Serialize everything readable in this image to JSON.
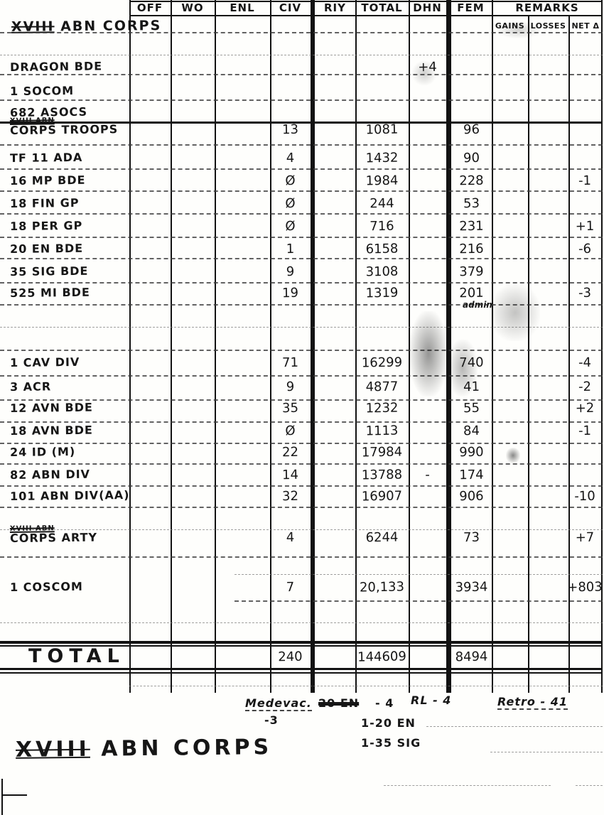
{
  "colors": {
    "ink": "#161616",
    "paper": "#fefefc",
    "smudge": "#555555"
  },
  "header": {
    "unit_title_prefix": "XVIII",
    "unit_title_rest": " ABN CORPS",
    "columns": [
      "OFF",
      "WO",
      "ENL",
      "CIV",
      "RIY",
      "TOTAL",
      "DHN",
      "FEM",
      "REMARKS"
    ],
    "remarks_subcolumns": [
      "GAINS",
      "LOSSES",
      "NET Δ"
    ]
  },
  "rows": [
    {
      "name": "DRAGON BDE",
      "dhn": "+4"
    },
    {
      "name": "1 SOCOM"
    },
    {
      "name": "682 ASOCS"
    },
    {
      "name_top": "XVIII ABN",
      "name": "CORPS TROOPS",
      "civ": "13",
      "total": "1081",
      "fem": "96"
    },
    {
      "name": "TF 11 ADA",
      "civ": "4",
      "total": "1432",
      "fem": "90"
    },
    {
      "name": "16 MP BDE",
      "civ": "Ø",
      "total": "1984",
      "fem": "228",
      "net": "-1"
    },
    {
      "name": "18 FIN GP",
      "civ": "Ø",
      "total": "244",
      "fem": "53"
    },
    {
      "name": "18 PER GP",
      "civ": "Ø",
      "total": "716",
      "fem": "231",
      "net": "+1"
    },
    {
      "name": "20 EN BDE",
      "civ": "1",
      "total": "6158",
      "fem": "216",
      "net": "-6"
    },
    {
      "name": "35 SIG BDE",
      "civ": "9",
      "total": "3108",
      "fem": "379"
    },
    {
      "name": "525 MI BDE",
      "civ": "19",
      "total": "1319",
      "fem": "201",
      "fem_note": "admin",
      "net": "-3"
    },
    {
      "name": "1 CAV DIV",
      "civ": "71",
      "total": "16299",
      "fem": "740",
      "net": "-4"
    },
    {
      "name": "3 ACR",
      "civ": "9",
      "total": "4877",
      "fem": "41",
      "net": "-2"
    },
    {
      "name": "12 AVN BDE",
      "civ": "35",
      "total": "1232",
      "fem": "55",
      "net": "+2"
    },
    {
      "name": "18 AVN BDE",
      "civ": "Ø",
      "total": "1113",
      "fem": "84",
      "net": "-1"
    },
    {
      "name": "24 ID (M)",
      "civ": "22",
      "total": "17984",
      "fem": "990"
    },
    {
      "name": "82 ABN DIV",
      "civ": "14",
      "total": "13788",
      "dhn": "-",
      "fem": "174"
    },
    {
      "name": "101 ABN DIV(AA)",
      "civ": "32",
      "total": "16907",
      "fem": "906",
      "net": "-10"
    },
    {
      "name_top": "XVIII ABN",
      "name": "CORPS ARTY",
      "civ": "4",
      "total": "6244",
      "fem": "73",
      "net": "+7"
    },
    {
      "name": "1 COSCOM",
      "civ": "7",
      "total": "20,133",
      "fem": "3934",
      "net": "+803"
    }
  ],
  "total_row": {
    "name": "TOTAL",
    "civ": "240",
    "total": "144609",
    "fem": "8494"
  },
  "footnotes": {
    "medevac_label": "Medevac.",
    "medevac_value": "-3",
    "crossed_out": "20 EN",
    "crossed_value": "- 4",
    "rl_note": "RL - 4",
    "retro_note": "Retro - 41",
    "note_en": "1-20 EN",
    "note_sig": "1-35 SIG"
  },
  "footer_title_prefix": "XVIII",
  "footer_title_rest": " ABN CORPS"
}
